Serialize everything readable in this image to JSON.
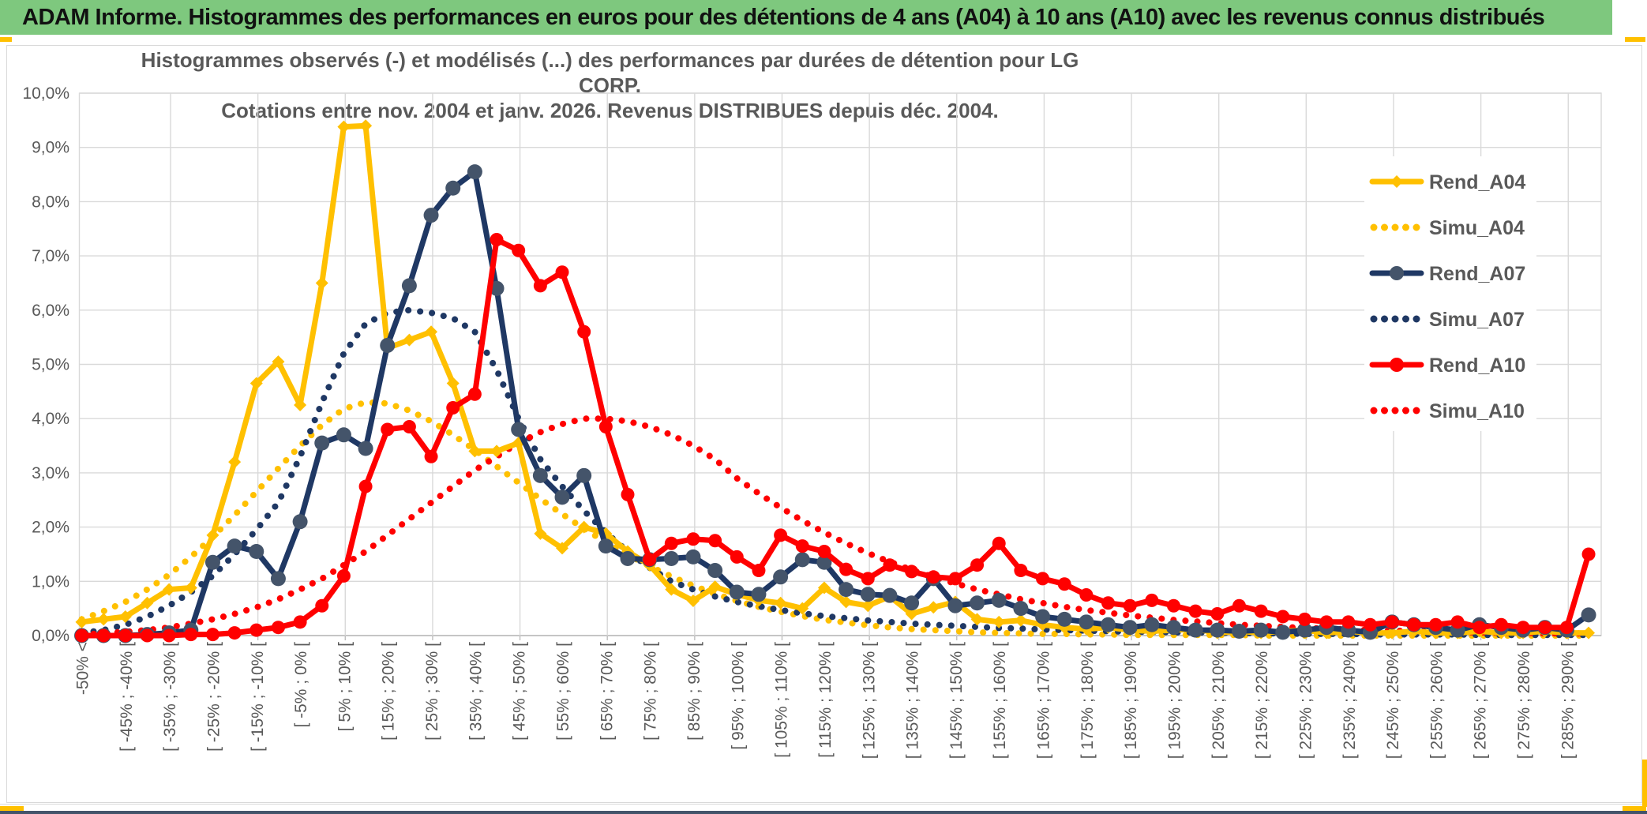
{
  "header": {
    "title": "ADAM Informe. Histogrammes des performances en euros pour des détentions de 4 ans (A04) à 10 ans (A10) avec les revenus connus distribués",
    "bar_color": "#7EC87E",
    "accent_color": "#FFC000",
    "footer_bar_color": "#44546A"
  },
  "chart_data": {
    "type": "line",
    "title": "Histogrammes observés (-) et modélisés (...) des performances par durées de détention pour LG CORP.",
    "subtitle": "Cotations entre nov. 2004 et janv. 2026. Revenus DISTRIBUES depuis déc. 2004.",
    "xlabel": "",
    "ylabel": "",
    "ylim": [
      0,
      10
    ],
    "grid": true,
    "legend_position": "right",
    "y_tick_labels": [
      "0,0%",
      "1,0%",
      "2,0%",
      "3,0%",
      "4,0%",
      "5,0%",
      "6,0%",
      "7,0%",
      "8,0%",
      "9,0%",
      "10,0%"
    ],
    "categories": [
      "-50% <",
      "",
      "[ -45% ; -40% [",
      "",
      "[ -35% ; -30% [",
      "",
      "[ -25% ; -20% [",
      "",
      "[ -15% ; -10% [",
      "",
      "[ -5% ; 0% [",
      "",
      "[ 5% ; 10% [",
      "",
      "[ 15% ; 20% [",
      "",
      "[ 25% ; 30% [",
      "",
      "[ 35% ; 40% [",
      "",
      "[ 45% ; 50% [",
      "",
      "[ 55% ; 60% [",
      "",
      "[ 65% ; 70% [",
      "",
      "[ 75% ; 80% [",
      "",
      "[ 85% ; 90% [",
      "",
      "[ 95% ; 100% [",
      "",
      "[ 105% ; 110% [",
      "",
      "[ 115% ; 120% [",
      "",
      "[ 125% ; 130% [",
      "",
      "[ 135% ; 140% [",
      "",
      "[ 145% ; 150% [",
      "",
      "[ 155% ; 160% [",
      "",
      "[ 165% ; 170% [",
      "",
      "[ 175% ; 180% [",
      "",
      "[ 185% ; 190% [",
      "",
      "[ 195% ; 200% [",
      "",
      "[ 205% ; 210% [",
      "",
      "[ 215% ; 220% [",
      "",
      "[ 225% ; 230% [",
      "",
      "[ 235% ; 240% [",
      "",
      "[ 245% ; 250% [",
      "",
      "[ 255% ; 260% [",
      "",
      "[ 265% ; 270% [",
      "",
      "[ 275% ; 280% [",
      "",
      "[ 285% ; 290% [",
      ""
    ],
    "series": [
      {
        "name": "Rend_A04",
        "color": "#FFC000",
        "style": "solid",
        "marker": "diamond",
        "marker_color": "#FFC000",
        "values": [
          0.25,
          0.3,
          0.35,
          0.6,
          0.85,
          0.88,
          1.85,
          3.2,
          4.65,
          5.05,
          4.25,
          6.5,
          9.38,
          9.4,
          5.3,
          5.45,
          5.6,
          4.65,
          3.4,
          3.4,
          3.55,
          1.88,
          1.61,
          2.0,
          1.88,
          1.55,
          1.3,
          0.85,
          0.64,
          0.9,
          0.76,
          0.65,
          0.6,
          0.5,
          0.88,
          0.62,
          0.55,
          0.72,
          0.4,
          0.52,
          0.62,
          0.3,
          0.25,
          0.28,
          0.2,
          0.15,
          0.12,
          0.15,
          0.1,
          0.08,
          0.1,
          0.12,
          0.05,
          0.08,
          0.05,
          0.08,
          0.1,
          0.05,
          0.08,
          0.05,
          0.05,
          0.08,
          0.05,
          0.05,
          0.08,
          0.05,
          0.05,
          0.08,
          0.05,
          0.05
        ]
      },
      {
        "name": "Simu_A04",
        "color": "#FFC000",
        "style": "dotted",
        "marker": null,
        "marker_color": "#FFC000",
        "values": [
          0.3,
          0.45,
          0.62,
          0.85,
          1.12,
          1.45,
          1.82,
          2.22,
          2.65,
          3.08,
          3.5,
          3.88,
          4.18,
          4.3,
          4.28,
          4.15,
          3.95,
          3.7,
          3.42,
          3.12,
          2.82,
          2.52,
          2.24,
          1.97,
          1.72,
          1.49,
          1.28,
          1.09,
          0.92,
          0.77,
          0.64,
          0.53,
          0.44,
          0.36,
          0.29,
          0.24,
          0.19,
          0.15,
          0.12,
          0.1,
          0.08,
          0.06,
          0.05,
          0.04,
          0.03,
          0.03,
          0.02,
          0.02,
          0.01,
          0.01,
          0.01,
          0.01,
          0.01,
          0.01,
          0.0,
          0.0,
          0.0,
          0.0,
          0.0,
          0.0,
          0.0,
          0.0,
          0.0,
          0.0,
          0.0,
          0.0,
          0.0,
          0.0,
          0.0,
          0.0
        ]
      },
      {
        "name": "Rend_A07",
        "color": "#1F3864",
        "style": "solid",
        "marker": "circle",
        "marker_color": "#44546A",
        "values": [
          0.0,
          0.0,
          0.0,
          0.02,
          0.05,
          0.1,
          1.35,
          1.65,
          1.55,
          1.05,
          2.1,
          3.55,
          3.7,
          3.45,
          5.35,
          6.45,
          7.75,
          8.25,
          8.55,
          6.4,
          3.8,
          2.95,
          2.55,
          2.95,
          1.65,
          1.42,
          1.4,
          1.42,
          1.45,
          1.2,
          0.8,
          0.76,
          1.08,
          1.4,
          1.35,
          0.85,
          0.76,
          0.74,
          0.6,
          1.05,
          0.55,
          0.6,
          0.65,
          0.5,
          0.35,
          0.3,
          0.25,
          0.2,
          0.15,
          0.2,
          0.15,
          0.1,
          0.1,
          0.08,
          0.1,
          0.06,
          0.1,
          0.15,
          0.1,
          0.06,
          0.25,
          0.2,
          0.15,
          0.1,
          0.2,
          0.15,
          0.1,
          0.15,
          0.1,
          0.38
        ]
      },
      {
        "name": "Simu_A07",
        "color": "#1F3864",
        "style": "dotted",
        "marker": null,
        "marker_color": "#1F3864",
        "values": [
          0.05,
          0.1,
          0.2,
          0.35,
          0.55,
          0.8,
          1.1,
          1.5,
          1.95,
          2.45,
          3.3,
          4.3,
          5.2,
          5.75,
          5.95,
          6.0,
          5.95,
          5.85,
          5.6,
          4.9,
          4.0,
          3.25,
          2.75,
          2.3,
          1.9,
          1.55,
          1.25,
          1.0,
          0.85,
          0.72,
          0.62,
          0.54,
          0.47,
          0.41,
          0.36,
          0.32,
          0.28,
          0.25,
          0.22,
          0.2,
          0.18,
          0.16,
          0.14,
          0.13,
          0.11,
          0.1,
          0.09,
          0.08,
          0.07,
          0.07,
          0.06,
          0.06,
          0.05,
          0.05,
          0.04,
          0.04,
          0.03,
          0.03,
          0.03,
          0.02,
          0.02,
          0.02,
          0.02,
          0.02,
          0.01,
          0.01,
          0.01,
          0.01,
          0.01,
          0.01
        ]
      },
      {
        "name": "Rend_A10",
        "color": "#FF0000",
        "style": "solid",
        "marker": "circle",
        "marker_color": "#FF0000",
        "values": [
          0.0,
          0.0,
          0.0,
          0.0,
          0.0,
          0.02,
          0.02,
          0.05,
          0.1,
          0.15,
          0.25,
          0.55,
          1.1,
          2.75,
          3.8,
          3.85,
          3.3,
          4.2,
          4.45,
          7.3,
          7.1,
          6.45,
          6.7,
          5.6,
          3.85,
          2.6,
          1.4,
          1.7,
          1.78,
          1.75,
          1.45,
          1.2,
          1.85,
          1.65,
          1.55,
          1.22,
          1.05,
          1.3,
          1.18,
          1.08,
          1.05,
          1.3,
          1.7,
          1.2,
          1.05,
          0.95,
          0.75,
          0.6,
          0.55,
          0.65,
          0.55,
          0.45,
          0.4,
          0.55,
          0.45,
          0.35,
          0.3,
          0.25,
          0.25,
          0.2,
          0.25,
          0.2,
          0.2,
          0.25,
          0.15,
          0.2,
          0.15,
          0.15,
          0.15,
          1.5
        ]
      },
      {
        "name": "Simu_A10",
        "color": "#FF0000",
        "style": "dotted",
        "marker": null,
        "marker_color": "#FF0000",
        "values": [
          0.02,
          0.04,
          0.07,
          0.1,
          0.15,
          0.22,
          0.3,
          0.4,
          0.52,
          0.67,
          0.85,
          1.05,
          1.3,
          1.55,
          1.85,
          2.15,
          2.45,
          2.75,
          3.05,
          3.3,
          3.55,
          3.75,
          3.9,
          4.0,
          4.0,
          3.95,
          3.85,
          3.7,
          3.5,
          3.25,
          2.9,
          2.62,
          2.36,
          2.12,
          1.9,
          1.7,
          1.52,
          1.36,
          1.21,
          1.08,
          0.96,
          0.85,
          0.76,
          0.67,
          0.6,
          0.53,
          0.47,
          0.42,
          0.37,
          0.33,
          0.29,
          0.26,
          0.23,
          0.2,
          0.18,
          0.16,
          0.14,
          0.13,
          0.11,
          0.1,
          0.09,
          0.08,
          0.07,
          0.06,
          0.06,
          0.05,
          0.05,
          0.04,
          0.04,
          0.04
        ]
      }
    ]
  }
}
